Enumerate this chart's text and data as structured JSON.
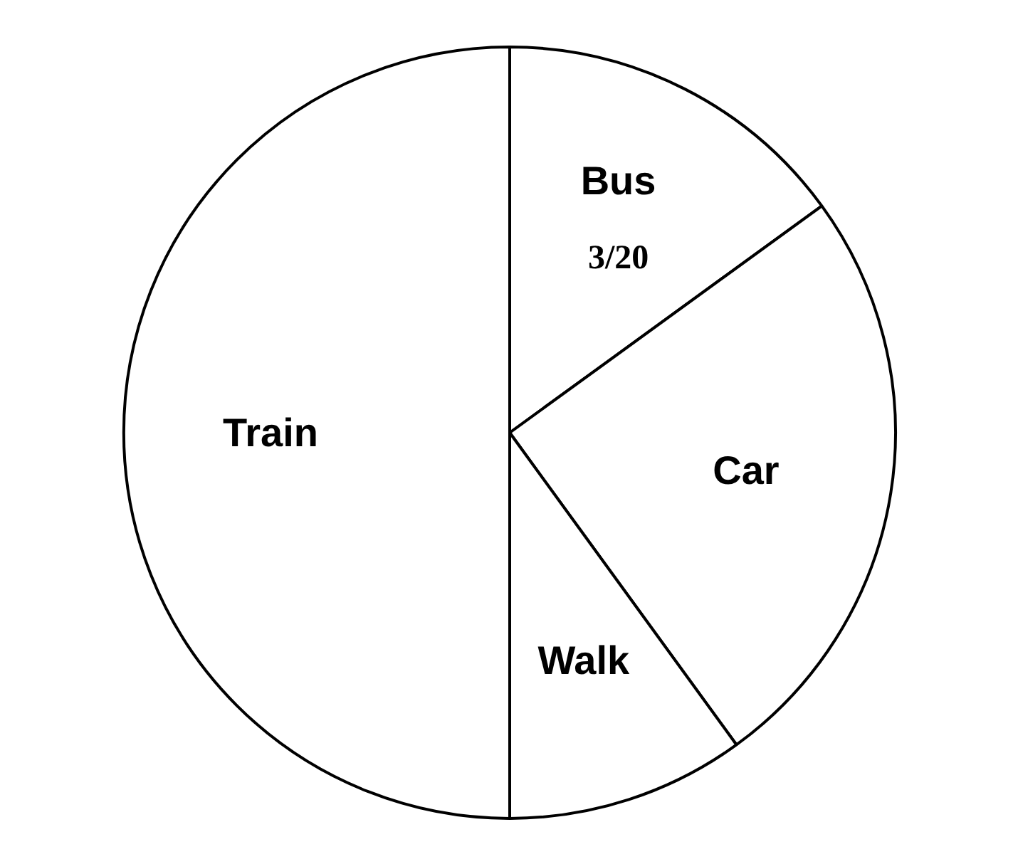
{
  "chart_data": {
    "type": "pie",
    "categories": [
      "Bus",
      "Car",
      "Walk",
      "Train"
    ],
    "values": [
      15,
      25,
      10,
      50
    ],
    "colors": [
      "#ffffff",
      "#ffffff",
      "#ffffff",
      "#ffffff"
    ],
    "value_labels": [
      "3/20",
      null,
      null,
      null
    ]
  }
}
